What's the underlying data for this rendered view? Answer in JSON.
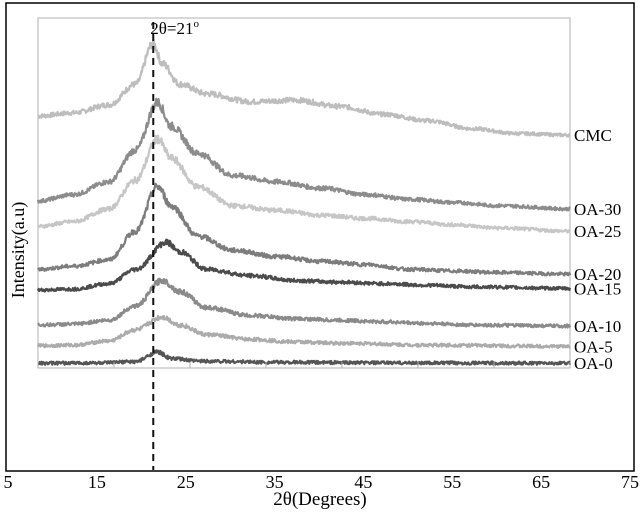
{
  "chart_data": {
    "type": "line",
    "xlabel": "2θ(Degrees)",
    "ylabel": "Intensity(a.u)",
    "xlim": [
      5,
      75
    ],
    "x_ticks": [
      "5",
      "15",
      "25",
      "35",
      "45",
      "55",
      "65",
      "75"
    ],
    "data_x_range": [
      8,
      68
    ],
    "grid": false,
    "legend": "labels at right end of each curve",
    "annotation": {
      "text": "2θ=21",
      "superscript": "o",
      "x": 21,
      "style": "dashed vertical line"
    },
    "series": [
      {
        "name": "CMC",
        "color": "#bdbdbd",
        "x": [
          8,
          12,
          16,
          19,
          21,
          22,
          24,
          27,
          32,
          37,
          42,
          47,
          52,
          57,
          62,
          68
        ],
        "values": [
          7.92,
          8.02,
          8.27,
          8.92,
          10.2,
          9.57,
          8.92,
          8.62,
          8.37,
          8.42,
          8.22,
          7.97,
          7.77,
          7.52,
          7.37,
          7.32
        ]
      },
      {
        "name": "OA-30",
        "color": "#8c8c8c",
        "x": [
          8,
          12,
          16,
          19,
          21.5,
          23,
          26,
          30,
          35,
          40,
          45,
          50,
          55,
          60,
          68
        ],
        "values": [
          5.25,
          5.45,
          5.85,
          6.85,
          8.35,
          7.6,
          6.75,
          6.05,
          5.85,
          5.65,
          5.45,
          5.3,
          5.2,
          5.1,
          5.0
        ]
      },
      {
        "name": "OA-25",
        "color": "#c6c6c6",
        "x": [
          8,
          12,
          16,
          19,
          21.5,
          23,
          26,
          30,
          35,
          40,
          45,
          50,
          55,
          60,
          68
        ],
        "values": [
          4.45,
          4.6,
          5.0,
          5.9,
          7.2,
          6.6,
          5.7,
          5.1,
          4.95,
          4.8,
          4.7,
          4.6,
          4.5,
          4.4,
          4.3
        ]
      },
      {
        "name": "OA-20",
        "color": "#7d7d7d",
        "x": [
          8,
          12,
          16,
          19,
          21.5,
          23,
          26,
          30,
          35,
          40,
          45,
          50,
          55,
          60,
          68
        ],
        "values": [
          3.1,
          3.2,
          3.4,
          4.3,
          5.7,
          5.1,
          4.15,
          3.7,
          3.5,
          3.35,
          3.25,
          3.1,
          3.05,
          3.0,
          2.95
        ]
      },
      {
        "name": "OA-15",
        "color": "#4b4b4b",
        "x": [
          8,
          12,
          16,
          19,
          22.5,
          24,
          27,
          32,
          37,
          42,
          47,
          52,
          57,
          68
        ],
        "values": [
          2.45,
          2.48,
          2.65,
          3.1,
          3.95,
          3.65,
          3.1,
          2.9,
          2.75,
          2.7,
          2.65,
          2.6,
          2.55,
          2.5
        ]
      },
      {
        "name": "OA-10",
        "color": "#8a8a8a",
        "x": [
          8,
          12,
          16,
          19,
          22,
          24,
          27,
          32,
          37,
          42,
          47,
          52,
          57,
          68
        ],
        "values": [
          1.35,
          1.38,
          1.5,
          1.95,
          2.75,
          2.4,
          1.9,
          1.65,
          1.55,
          1.5,
          1.45,
          1.4,
          1.35,
          1.32
        ]
      },
      {
        "name": "OA-5",
        "color": "#ababab",
        "x": [
          8,
          12,
          16,
          19,
          22,
          24,
          27,
          32,
          37,
          42,
          52,
          68
        ],
        "values": [
          0.7,
          0.72,
          0.85,
          1.2,
          1.6,
          1.35,
          1.05,
          0.9,
          0.82,
          0.78,
          0.72,
          0.68
        ]
      },
      {
        "name": "OA-0",
        "color": "#555555",
        "x": [
          8,
          15,
          19,
          21.5,
          23,
          26,
          35,
          50,
          68
        ],
        "values": [
          0.15,
          0.16,
          0.2,
          0.5,
          0.3,
          0.22,
          0.18,
          0.16,
          0.15
        ]
      }
    ]
  }
}
